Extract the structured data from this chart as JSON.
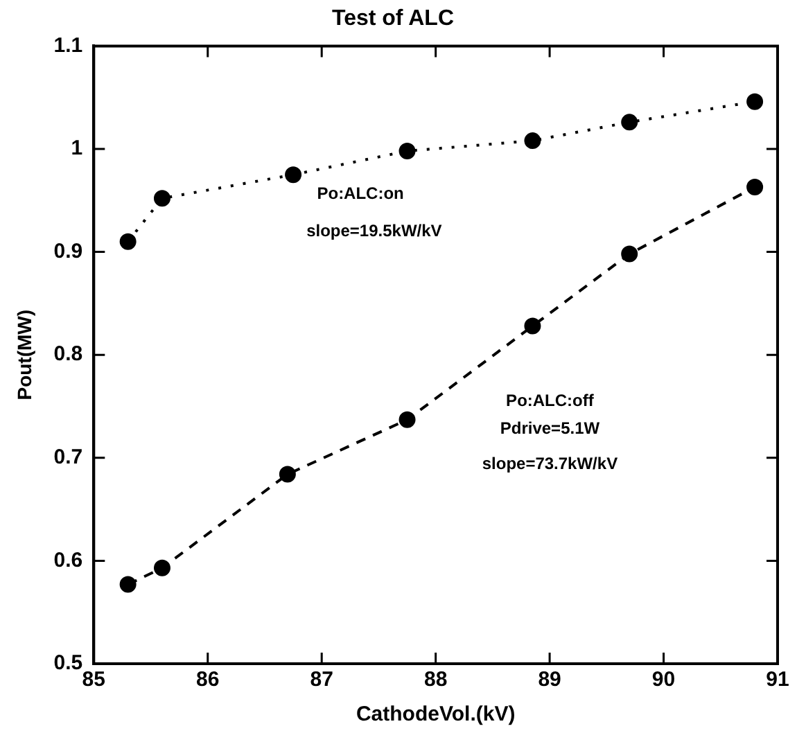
{
  "chart_data": {
    "type": "line",
    "title": "Test of ALC",
    "xlabel": "CathodeVol.(kV)",
    "ylabel": "Pout(MW)",
    "xlim": [
      85,
      91
    ],
    "xticks": [
      85,
      86,
      87,
      88,
      89,
      90,
      91
    ],
    "ylim": [
      0.5,
      1.1
    ],
    "yticks": [
      0.5,
      0.6,
      0.7,
      0.8,
      0.9,
      1,
      1.1
    ],
    "grid": false,
    "legend": false,
    "marker": "circle",
    "series": [
      {
        "color": "#000000",
        "line_style": "dotted",
        "x": [
          85.3,
          85.6,
          86.75,
          87.75,
          88.85,
          89.7,
          90.8
        ],
        "values": [
          0.91,
          0.952,
          0.975,
          0.998,
          1.008,
          1.026,
          1.046
        ]
      },
      {
        "color": "#000000",
        "line_style": "dashed",
        "x": [
          85.3,
          85.6,
          86.7,
          87.75,
          88.85,
          89.7,
          90.8
        ],
        "values": [
          0.577,
          0.593,
          0.684,
          0.737,
          0.828,
          0.898,
          0.963
        ]
      }
    ],
    "annotations": [
      "Po:ALC:on",
      "slope=19.5kW/kV",
      "Po:ALC:off",
      "Pdrive=5.1W",
      "slope=73.7kW/kV"
    ]
  }
}
